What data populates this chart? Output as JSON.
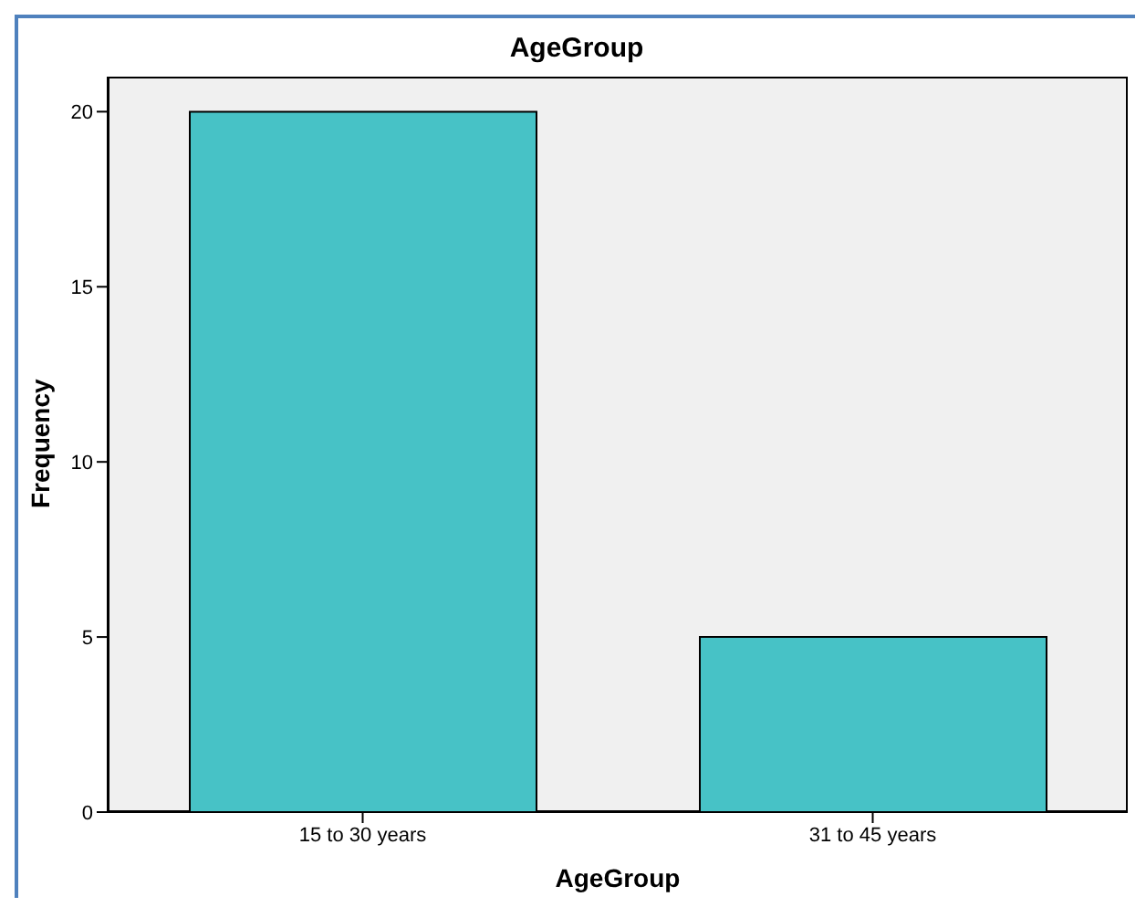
{
  "chart_data": {
    "type": "bar",
    "title": "AgeGroup",
    "xlabel": "AgeGroup",
    "ylabel": "Frequency",
    "categories": [
      "15 to 30 years",
      "31 to 45 years"
    ],
    "values": [
      20,
      5
    ],
    "color": "#47c2c6",
    "ylim": [
      0,
      21
    ],
    "yticks": [
      0,
      5,
      10,
      15,
      20
    ],
    "grid": false
  }
}
